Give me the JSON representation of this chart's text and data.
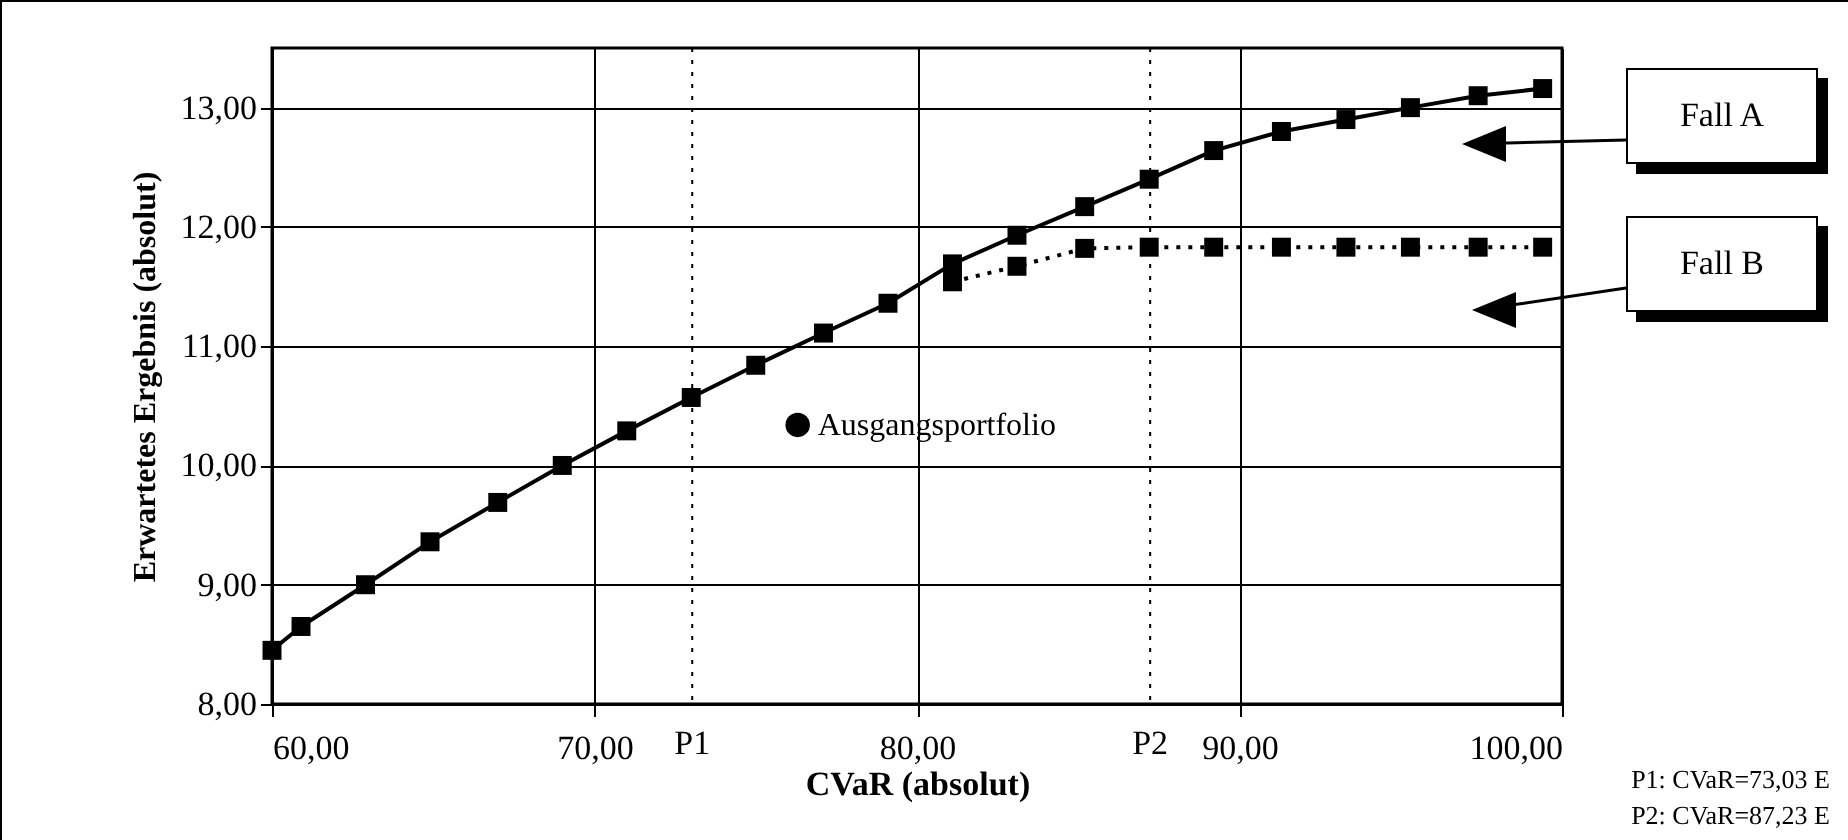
{
  "chart_data": {
    "type": "line",
    "xlabel": "CVaR (absolut)",
    "ylabel": "Erwartetes Ergebnis (absolut)",
    "xlim": [
      60,
      100
    ],
    "ylim": [
      8,
      13.5
    ],
    "xticks": [
      {
        "value": 60,
        "label": "60,00"
      },
      {
        "value": 70,
        "label": "70,00"
      },
      {
        "value": 80,
        "label": "80,00"
      },
      {
        "value": 90,
        "label": "90,00"
      },
      {
        "value": 100,
        "label": "100,00"
      }
    ],
    "yticks": [
      {
        "value": 8,
        "label": "8,00"
      },
      {
        "value": 9,
        "label": "9,00"
      },
      {
        "value": 10,
        "label": "10,00"
      },
      {
        "value": 11,
        "label": "11,00"
      },
      {
        "value": 12,
        "label": "12,00"
      },
      {
        "value": 13,
        "label": "13,00"
      }
    ],
    "grid": true,
    "series": [
      {
        "name": "Fall A",
        "color": "#000000",
        "line_style": "solid",
        "marker": "square",
        "x": [
          60.0,
          60.9,
          62.9,
          64.9,
          67.0,
          69.0,
          71.0,
          73.0,
          75.0,
          77.1,
          79.1,
          81.1,
          83.1,
          85.2,
          87.2,
          89.2,
          91.3,
          93.3,
          95.3,
          97.4,
          99.4
        ],
        "values": [
          8.45,
          8.65,
          9.0,
          9.36,
          9.69,
          10.0,
          10.29,
          10.57,
          10.84,
          11.11,
          11.36,
          11.69,
          11.93,
          12.17,
          12.4,
          12.64,
          12.8,
          12.9,
          13.0,
          13.1,
          13.16
        ]
      },
      {
        "name": "Fall B",
        "color": "#000000",
        "line_style": "dotted",
        "marker": "square",
        "x": [
          81.1,
          83.1,
          85.2,
          87.2,
          89.2,
          91.3,
          93.3,
          95.3,
          97.4,
          99.4
        ],
        "values": [
          11.54,
          11.67,
          11.82,
          11.83,
          11.83,
          11.83,
          11.83,
          11.83,
          11.83,
          11.83
        ]
      },
      {
        "name": "Ausgangsportfolio",
        "type": "scatter",
        "color": "#000000",
        "marker": "circle",
        "x": [
          76.3
        ],
        "values": [
          10.34
        ]
      }
    ],
    "ref_lines": [
      {
        "axis": "x",
        "value": 73.03,
        "label": "P1",
        "line_style": "dotted"
      },
      {
        "axis": "x",
        "value": 87.23,
        "label": "P2",
        "line_style": "dotted"
      }
    ],
    "annotations": [
      "P1: CVaR=73,03 E",
      "P2: CVaR=87,23 E"
    ]
  }
}
